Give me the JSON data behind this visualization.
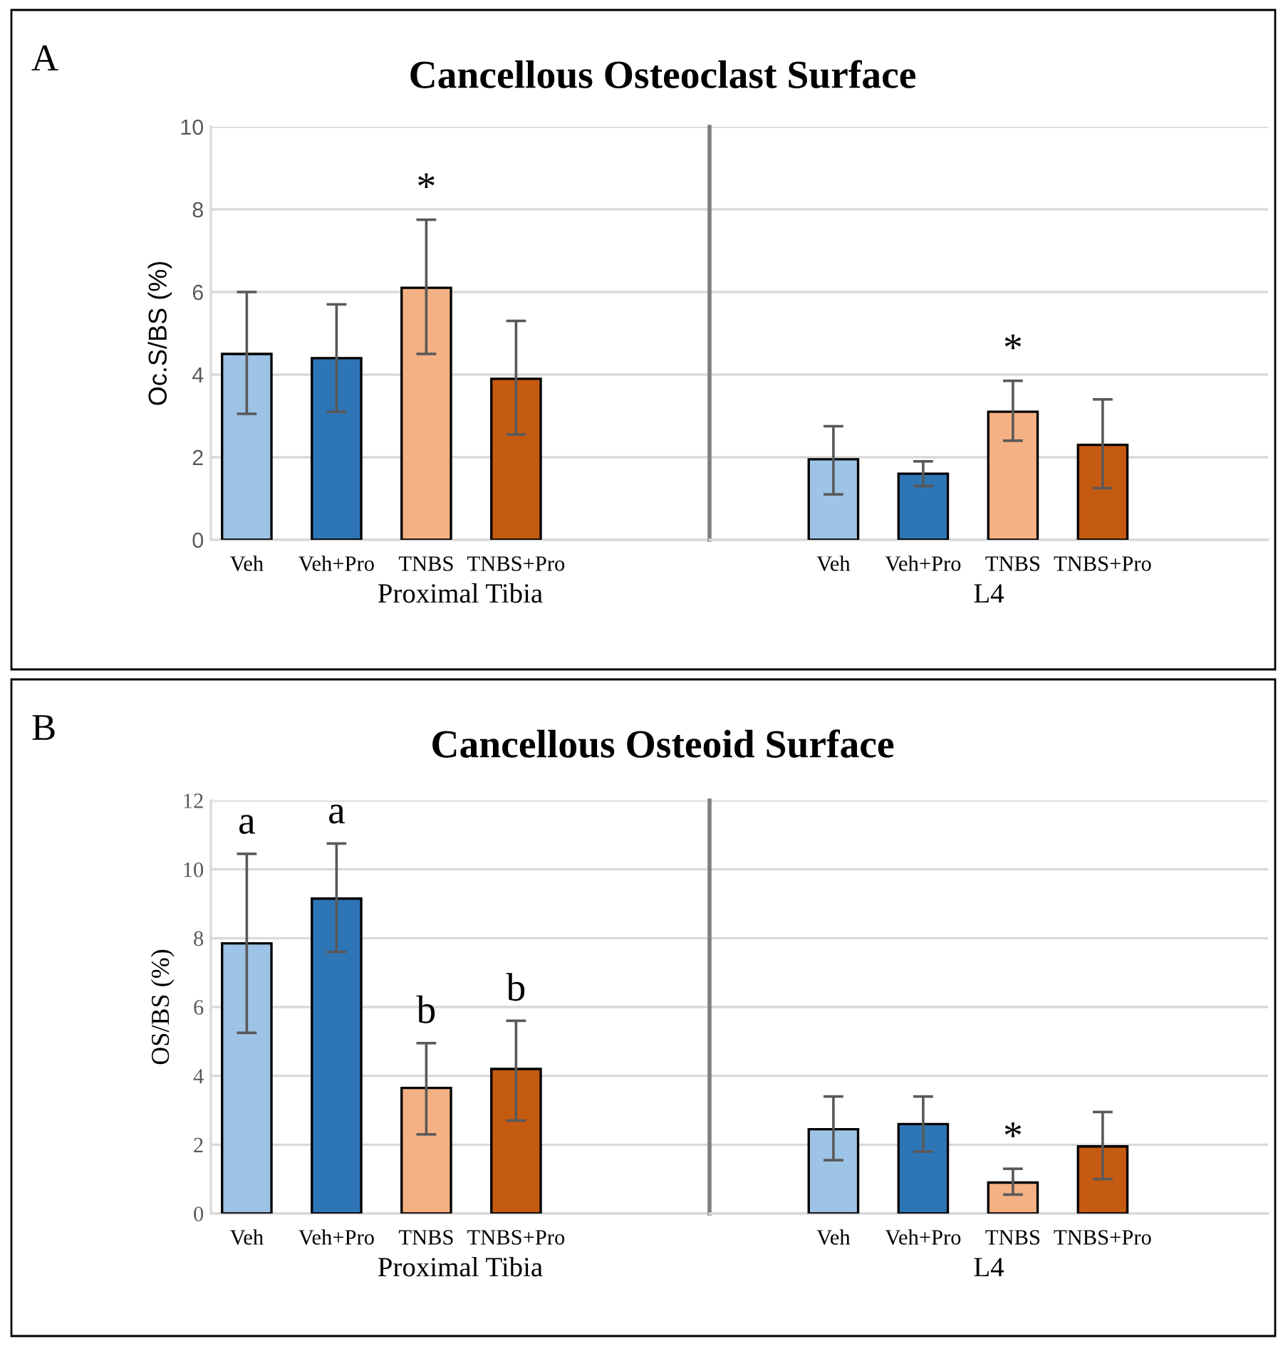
{
  "chart_data": [
    {
      "type": "bar",
      "title": "Cancellous Osteoclast Surface",
      "ylabel": "Oc.S/BS (%)",
      "xlabel": "Proximal Tibia",
      "categories": [
        "Veh",
        "Veh+Pro",
        "TNBS",
        "TNBS+Pro"
      ],
      "values": [
        4.5,
        4.4,
        6.1,
        3.9
      ],
      "colors": [
        "#9dc3e6",
        "#2e75b6",
        "#f4b183",
        "#c55a11"
      ],
      "errors": [
        [
          3.05,
          6.0
        ],
        [
          3.1,
          5.7
        ],
        [
          4.5,
          7.75
        ],
        [
          2.55,
          5.3
        ]
      ],
      "ylim": [
        0,
        10
      ],
      "yticks": [
        0,
        2,
        4,
        6,
        8,
        10
      ],
      "grid": "y",
      "value_labels": [
        null,
        null,
        "*",
        null
      ],
      "annotations": [
        "A"
      ]
    },
    {
      "type": "bar",
      "xlabel": "L4",
      "categories": [
        "Veh",
        "Veh+Pro",
        "TNBS",
        "TNBS+Pro"
      ],
      "values": [
        1.95,
        1.6,
        3.1,
        2.3
      ],
      "colors": [
        "#9dc3e6",
        "#2e75b6",
        "#f4b183",
        "#c55a11"
      ],
      "errors": [
        [
          1.1,
          2.75
        ],
        [
          1.3,
          1.9
        ],
        [
          2.4,
          3.85
        ],
        [
          1.25,
          3.4
        ]
      ],
      "ylim": [
        0,
        10
      ],
      "yticks": [
        0,
        2,
        4,
        6,
        8,
        10
      ],
      "grid": "y",
      "tick_labels": "x",
      "value_labels": [
        null,
        null,
        "*",
        null
      ]
    },
    {
      "type": "bar",
      "title": "Cancellous Osteoid Surface",
      "ylabel": "OS/BS (%)",
      "xlabel": "Proximal Tibia",
      "categories": [
        "Veh",
        "Veh+Pro",
        "TNBS",
        "TNBS+Pro"
      ],
      "values": [
        7.85,
        9.15,
        3.65,
        4.2
      ],
      "colors": [
        "#9dc3e6",
        "#2e75b6",
        "#f4b183",
        "#c55a11"
      ],
      "errors": [
        [
          5.25,
          10.45
        ],
        [
          7.6,
          10.75
        ],
        [
          2.3,
          4.95
        ],
        [
          2.7,
          5.6
        ]
      ],
      "ylim": [
        0,
        12
      ],
      "yticks": [
        0,
        2,
        4,
        6,
        8,
        10,
        12
      ],
      "grid": "y",
      "value_labels": [
        "a",
        "a",
        "b",
        "b"
      ],
      "annotations": [
        "B"
      ]
    },
    {
      "type": "bar",
      "xlabel": "L4",
      "categories": [
        "Veh",
        "Veh+Pro",
        "TNBS",
        "TNBS+Pro"
      ],
      "values": [
        2.45,
        2.6,
        0.9,
        1.95
      ],
      "colors": [
        "#9dc3e6",
        "#2e75b6",
        "#f4b183",
        "#c55a11"
      ],
      "errors": [
        [
          1.55,
          3.4
        ],
        [
          1.8,
          3.4
        ],
        [
          0.55,
          1.3
        ],
        [
          1.0,
          2.95
        ]
      ],
      "ylim": [
        0,
        12
      ],
      "yticks": [
        0,
        2,
        4,
        6,
        8,
        10,
        12
      ],
      "grid": "y",
      "tick_labels": "x",
      "value_labels": [
        null,
        null,
        "*",
        null
      ]
    }
  ]
}
